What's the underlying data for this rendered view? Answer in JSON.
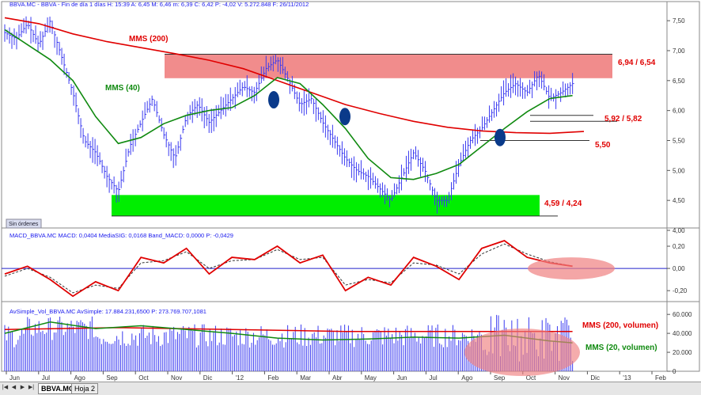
{
  "colors": {
    "price_bars": "#3a3af0",
    "mms200": "#e00000",
    "mms40": "#108a10",
    "resistance_zone": "#f08080",
    "support_zone": "#00ee00",
    "label_red": "#e00000",
    "label_green": "#108a10",
    "header_blue": "#1a1aee",
    "macd_line": "#e00000",
    "signal_line": "#333333",
    "zero_line": "#2222cc",
    "volume_bars": "#3a3af0",
    "highlight_ellipse": "#f08080",
    "cross_marker": "#0a3a8a"
  },
  "price_panel": {
    "header": "BBVA.MC - BBVA - Fin de día 1 días  H: 15:39  A: 6,45  M: 6,46  m: 6,39  C: 6,42  P: -4,02  V: 5.272.848  F: 26/11/2012",
    "status_box": "Sin órdenes",
    "annotations": {
      "mms200": "MMS (200)",
      "mms40": "MMS (40)",
      "resistance": "6,94 / 6,54",
      "mid_resistance": "5,92 / 5,82",
      "level_550": "5,50",
      "support": "4,59 / 4,24"
    }
  },
  "macd_panel": {
    "header": "MACD_BBVA.MC  MACD: 0,0404  MediaSIG: 0,0168  Band_MACD: 0,0000  P: -0,0429"
  },
  "volume_panel": {
    "header": "AvSimple_Vol_BBVA.MC  AvSimple: 17.884.231,6500  P: 273.769.707,1081",
    "annotations": {
      "mms200_vol": "MMS (200, volumen)",
      "mms20_vol": "MMS (20, volumen)"
    }
  },
  "x_axis": {
    "labels": [
      "Jun",
      "Jul",
      "Ago",
      "Sep",
      "Oct",
      "Nov",
      "Dic",
      "'12",
      "Feb",
      "Mar",
      "Abr",
      "May",
      "Jun",
      "Jul",
      "Ago",
      "Sep",
      "Oct",
      "Nov",
      "Dic",
      "'13",
      "Feb"
    ]
  },
  "bottom_bar": {
    "tabs": [
      "BBVA.MC",
      "Hoja 2"
    ]
  },
  "chart_data": [
    {
      "type": "line",
      "description_panel": "price",
      "y_ticks": [
        "7,50",
        "7,00",
        "6,50",
        "6,00",
        "5,50",
        "5,00",
        "4,50",
        "4,00"
      ],
      "ylim": [
        4.0,
        7.7
      ],
      "series": [
        {
          "name": "MMS (200)",
          "points": [
            [
              0,
              7.55
            ],
            [
              3,
              7.45
            ],
            [
              6,
              7.28
            ],
            [
              9,
              7.15
            ],
            [
              12,
              7.05
            ],
            [
              15,
              6.95
            ],
            [
              18,
              6.84
            ],
            [
              21,
              6.7
            ],
            [
              24,
              6.5
            ],
            [
              27,
              6.3
            ],
            [
              30,
              6.1
            ],
            [
              33,
              5.95
            ],
            [
              36,
              5.82
            ],
            [
              39,
              5.72
            ],
            [
              42,
              5.66
            ],
            [
              45,
              5.63
            ],
            [
              48,
              5.62
            ],
            [
              51,
              5.65
            ]
          ]
        },
        {
          "name": "MMS (40)",
          "points": [
            [
              0,
              7.35
            ],
            [
              2,
              7.1
            ],
            [
              4,
              6.85
            ],
            [
              6,
              6.5
            ],
            [
              8,
              5.9
            ],
            [
              10,
              5.45
            ],
            [
              12,
              5.55
            ],
            [
              14,
              5.78
            ],
            [
              16,
              5.92
            ],
            [
              18,
              6.0
            ],
            [
              20,
              6.05
            ],
            [
              22,
              6.25
            ],
            [
              24,
              6.55
            ],
            [
              26,
              6.45
            ],
            [
              28,
              6.1
            ],
            [
              30,
              5.7
            ],
            [
              32,
              5.2
            ],
            [
              34,
              4.88
            ],
            [
              36,
              4.85
            ],
            [
              38,
              4.95
            ],
            [
              40,
              5.1
            ],
            [
              42,
              5.4
            ],
            [
              44,
              5.7
            ],
            [
              46,
              5.98
            ],
            [
              48,
              6.2
            ],
            [
              50,
              6.25
            ]
          ]
        }
      ],
      "price_path": [
        [
          0,
          7.3
        ],
        [
          1,
          7.2
        ],
        [
          2,
          7.45
        ],
        [
          3,
          7.1
        ],
        [
          4,
          7.5
        ],
        [
          5,
          6.9
        ],
        [
          6,
          6.3
        ],
        [
          7,
          5.5
        ],
        [
          8,
          5.3
        ],
        [
          9,
          4.9
        ],
        [
          10,
          4.65
        ],
        [
          11,
          5.4
        ],
        [
          12,
          5.8
        ],
        [
          13,
          6.2
        ],
        [
          14,
          5.6
        ],
        [
          15,
          5.2
        ],
        [
          16,
          5.9
        ],
        [
          17,
          6.1
        ],
        [
          18,
          5.8
        ],
        [
          19,
          6.0
        ],
        [
          20,
          6.2
        ],
        [
          21,
          6.4
        ],
        [
          22,
          6.3
        ],
        [
          23,
          6.7
        ],
        [
          24,
          6.85
        ],
        [
          25,
          6.5
        ],
        [
          26,
          6.1
        ],
        [
          27,
          6.2
        ],
        [
          28,
          5.8
        ],
        [
          29,
          5.5
        ],
        [
          30,
          5.2
        ],
        [
          31,
          5.0
        ],
        [
          32,
          4.9
        ],
        [
          33,
          4.7
        ],
        [
          34,
          4.5
        ],
        [
          35,
          4.9
        ],
        [
          36,
          5.3
        ],
        [
          37,
          5.0
        ],
        [
          38,
          4.5
        ],
        [
          39,
          4.5
        ],
        [
          40,
          5.1
        ],
        [
          41,
          5.5
        ],
        [
          42,
          5.7
        ],
        [
          43,
          6.0
        ],
        [
          44,
          6.3
        ],
        [
          45,
          6.45
        ],
        [
          46,
          6.3
        ],
        [
          47,
          6.6
        ],
        [
          48,
          6.2
        ],
        [
          49,
          6.3
        ],
        [
          50,
          6.45
        ]
      ]
    },
    {
      "type": "line",
      "description_panel": "macd",
      "y_ticks": [
        "0,20",
        "0,00",
        "-0,20"
      ],
      "ylim": [
        -0.32,
        0.3
      ],
      "series": [
        {
          "name": "MACD",
          "points": [
            [
              0,
              -0.05
            ],
            [
              2,
              0.02
            ],
            [
              4,
              -0.1
            ],
            [
              6,
              -0.25
            ],
            [
              8,
              -0.12
            ],
            [
              10,
              -0.2
            ],
            [
              12,
              0.1
            ],
            [
              14,
              0.05
            ],
            [
              16,
              0.18
            ],
            [
              18,
              -0.05
            ],
            [
              20,
              0.1
            ],
            [
              22,
              0.08
            ],
            [
              24,
              0.2
            ],
            [
              26,
              0.05
            ],
            [
              28,
              0.12
            ],
            [
              30,
              -0.2
            ],
            [
              32,
              -0.08
            ],
            [
              34,
              -0.15
            ],
            [
              36,
              0.1
            ],
            [
              38,
              0.02
            ],
            [
              40,
              -0.1
            ],
            [
              42,
              0.18
            ],
            [
              44,
              0.25
            ],
            [
              46,
              0.1
            ],
            [
              48,
              0.05
            ],
            [
              50,
              0.02
            ]
          ]
        },
        {
          "name": "MediaSIG",
          "points": [
            [
              0,
              -0.07
            ],
            [
              2,
              0.0
            ],
            [
              4,
              -0.08
            ],
            [
              6,
              -0.22
            ],
            [
              8,
              -0.15
            ],
            [
              10,
              -0.18
            ],
            [
              12,
              0.05
            ],
            [
              14,
              0.07
            ],
            [
              16,
              0.15
            ],
            [
              18,
              0.0
            ],
            [
              20,
              0.07
            ],
            [
              22,
              0.08
            ],
            [
              24,
              0.17
            ],
            [
              26,
              0.08
            ],
            [
              28,
              0.1
            ],
            [
              30,
              -0.15
            ],
            [
              32,
              -0.1
            ],
            [
              34,
              -0.13
            ],
            [
              36,
              0.05
            ],
            [
              38,
              0.03
            ],
            [
              40,
              -0.05
            ],
            [
              42,
              0.13
            ],
            [
              44,
              0.22
            ],
            [
              46,
              0.13
            ],
            [
              48,
              0.06
            ],
            [
              50,
              0.02
            ]
          ]
        }
      ]
    },
    {
      "type": "bar",
      "description_panel": "volume",
      "y_ticks": [
        "60.000",
        "40.000",
        "20.000",
        "0"
      ],
      "ylim": [
        0,
        66
      ],
      "series": [
        {
          "name": "MMS (200, volumen)",
          "points": [
            [
              0,
              44
            ],
            [
              10,
              46
            ],
            [
              20,
              44
            ],
            [
              30,
              42
            ],
            [
              40,
              42
            ],
            [
              45,
              42
            ],
            [
              50,
              42
            ]
          ]
        },
        {
          "name": "MMS (20, volumen)",
          "points": [
            [
              0,
              40
            ],
            [
              4,
              52
            ],
            [
              8,
              45
            ],
            [
              12,
              48
            ],
            [
              16,
              44
            ],
            [
              20,
              40
            ],
            [
              24,
              35
            ],
            [
              28,
              33
            ],
            [
              32,
              34
            ],
            [
              36,
              36
            ],
            [
              40,
              35
            ],
            [
              44,
              38
            ],
            [
              48,
              32
            ],
            [
              50,
              30
            ]
          ]
        }
      ]
    }
  ]
}
